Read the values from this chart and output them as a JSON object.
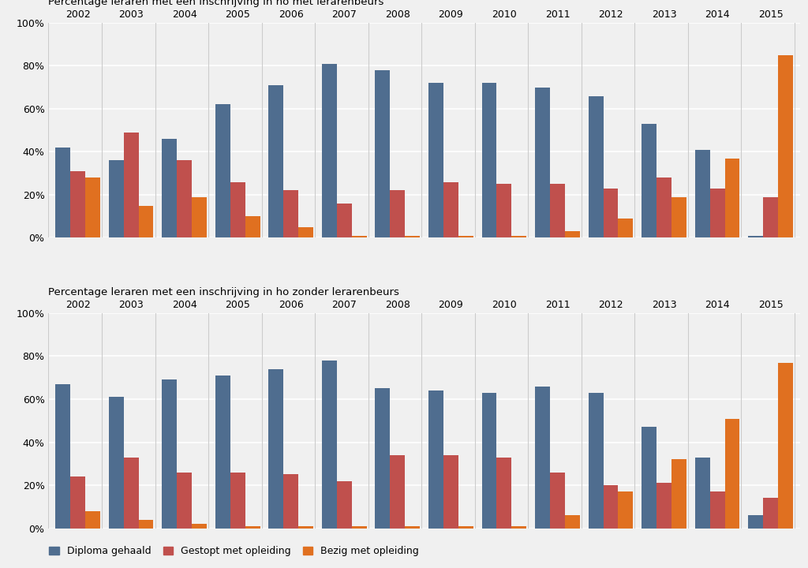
{
  "title1": "Percentage leraren met een inschrijving in ho met lerarenbeurs",
  "title2": "Percentage leraren met een inschrijving in ho zonder lerarenbeurs",
  "years": [
    2002,
    2003,
    2004,
    2005,
    2006,
    2007,
    2008,
    2009,
    2010,
    2011,
    2012,
    2013,
    2014,
    2015
  ],
  "top": {
    "diploma": [
      42,
      36,
      46,
      62,
      71,
      81,
      78,
      72,
      72,
      70,
      66,
      53,
      41,
      1
    ],
    "gestopt": [
      31,
      49,
      36,
      26,
      22,
      16,
      22,
      26,
      25,
      25,
      23,
      28,
      23,
      19
    ],
    "bezig": [
      28,
      15,
      19,
      10,
      5,
      1,
      1,
      1,
      1,
      3,
      9,
      19,
      37,
      85
    ]
  },
  "bottom": {
    "diploma": [
      67,
      61,
      69,
      71,
      74,
      78,
      65,
      64,
      63,
      66,
      63,
      47,
      33,
      6
    ],
    "gestopt": [
      24,
      33,
      26,
      26,
      25,
      22,
      34,
      34,
      33,
      26,
      20,
      21,
      17,
      14
    ],
    "bezig": [
      8,
      4,
      2,
      1,
      1,
      1,
      1,
      1,
      1,
      6,
      17,
      32,
      51,
      77
    ]
  },
  "colors": {
    "diploma": "#4F6D8F",
    "gestopt": "#C0504D",
    "bezig": "#E07020"
  },
  "legend_labels": [
    "Diploma gehaald",
    "Gestopt met opleiding",
    "Bezig met opleiding"
  ],
  "background_color": "#F0F0F0",
  "plot_bg_color": "#F0F0F0",
  "grid_color": "#FFFFFF",
  "separator_color": "#CCCCCC"
}
